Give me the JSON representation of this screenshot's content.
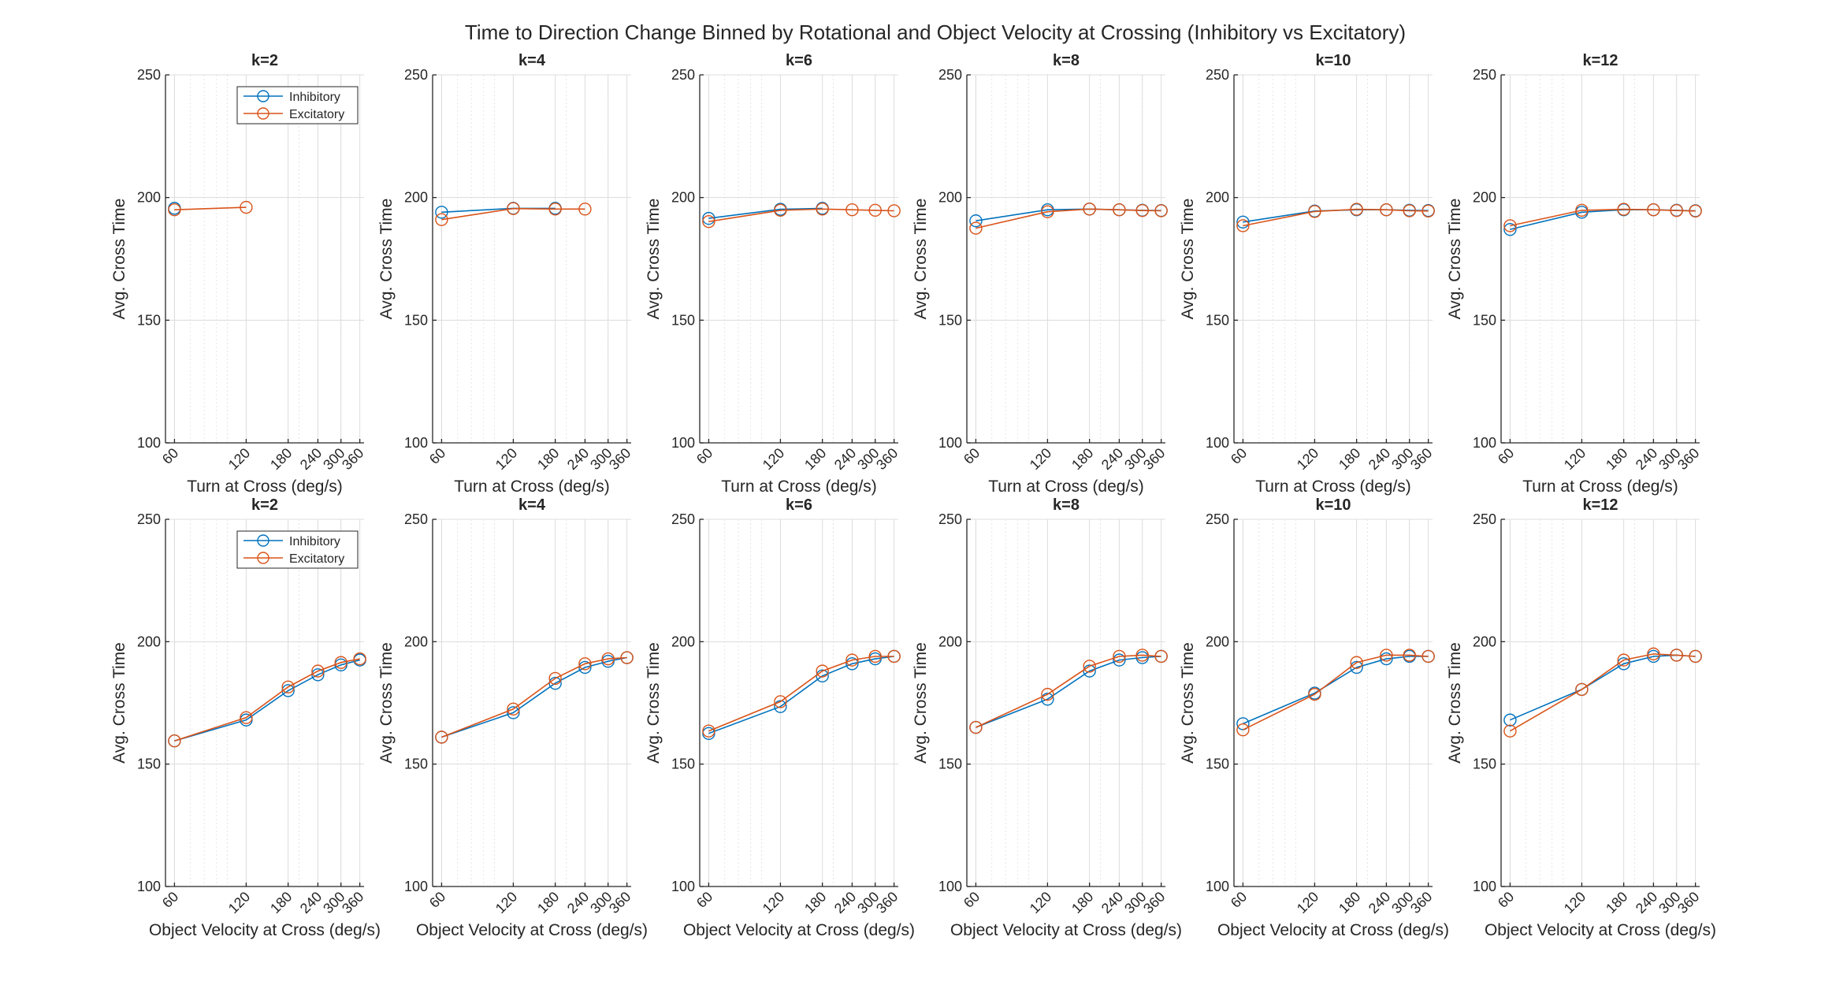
{
  "figure": {
    "title": "Time to Direction Change Binned by Rotational and Object Velocity at Crossing (Inhibitory vs Excitatory)"
  },
  "colors": {
    "inhibitory": "#0072BD",
    "excitatory": "#D95319",
    "axis": "#262626",
    "grid": "#dcdcdc"
  },
  "legend": {
    "entries": [
      "Inhibitory",
      "Excitatory"
    ],
    "placement": "top-right"
  },
  "chart_data": [
    {
      "type": "line",
      "row": 0,
      "title": "k=2",
      "xlabel": "Turn at Cross (deg/s)",
      "ylabel": "Avg. Cross Time",
      "xscale": "log",
      "xlim": [
        55,
        375
      ],
      "ylim": [
        100,
        250
      ],
      "xticks": [
        60,
        120,
        180,
        240,
        300,
        360
      ],
      "yticks": [
        100,
        150,
        200,
        250
      ],
      "grid": true,
      "legend": true,
      "series": [
        {
          "name": "Inhibitory",
          "x": [
            60
          ],
          "y": [
            195.6
          ]
        },
        {
          "name": "Excitatory",
          "x": [
            60,
            120
          ],
          "y": [
            195,
            196
          ]
        }
      ]
    },
    {
      "type": "line",
      "row": 0,
      "title": "k=4",
      "xlabel": "Turn at Cross (deg/s)",
      "ylabel": "Avg. Cross Time",
      "xscale": "log",
      "xlim": [
        55,
        375
      ],
      "ylim": [
        100,
        250
      ],
      "xticks": [
        60,
        120,
        180,
        240,
        300,
        360
      ],
      "yticks": [
        100,
        150,
        200,
        250
      ],
      "grid": true,
      "legend": false,
      "series": [
        {
          "name": "Inhibitory",
          "x": [
            60,
            120,
            180
          ],
          "y": [
            194,
            195.6,
            195.6
          ]
        },
        {
          "name": "Excitatory",
          "x": [
            60,
            120,
            180,
            240
          ],
          "y": [
            191,
            195.5,
            195.3,
            195.3
          ]
        }
      ]
    },
    {
      "type": "line",
      "row": 0,
      "title": "k=6",
      "xlabel": "Turn at Cross (deg/s)",
      "ylabel": "Avg. Cross Time",
      "xscale": "log",
      "xlim": [
        55,
        375
      ],
      "ylim": [
        100,
        250
      ],
      "xticks": [
        60,
        120,
        180,
        240,
        300,
        360
      ],
      "yticks": [
        100,
        150,
        200,
        250
      ],
      "grid": true,
      "legend": false,
      "series": [
        {
          "name": "Inhibitory",
          "x": [
            60,
            120,
            180
          ],
          "y": [
            191.5,
            195.2,
            195.6
          ]
        },
        {
          "name": "Excitatory",
          "x": [
            60,
            120,
            180,
            240,
            300,
            360
          ],
          "y": [
            190.2,
            194.8,
            195.3,
            195,
            194.8,
            194.6
          ]
        }
      ]
    },
    {
      "type": "line",
      "row": 0,
      "title": "k=8",
      "xlabel": "Turn at Cross (deg/s)",
      "ylabel": "Avg. Cross Time",
      "xscale": "log",
      "xlim": [
        55,
        375
      ],
      "ylim": [
        100,
        250
      ],
      "xticks": [
        60,
        120,
        180,
        240,
        300,
        360
      ],
      "yticks": [
        100,
        150,
        200,
        250
      ],
      "grid": true,
      "legend": false,
      "series": [
        {
          "name": "Inhibitory",
          "x": [
            60,
            120,
            180,
            240,
            300,
            360
          ],
          "y": [
            190.5,
            195,
            195.3,
            195,
            194.8,
            194.7
          ]
        },
        {
          "name": "Excitatory",
          "x": [
            60,
            120,
            180,
            240,
            300,
            360
          ],
          "y": [
            187.5,
            194.2,
            195.3,
            195,
            194.7,
            194.6
          ]
        }
      ]
    },
    {
      "type": "line",
      "row": 0,
      "title": "k=10",
      "xlabel": "Turn at Cross (deg/s)",
      "ylabel": "Avg. Cross Time",
      "xscale": "log",
      "xlim": [
        55,
        375
      ],
      "ylim": [
        100,
        250
      ],
      "xticks": [
        60,
        120,
        180,
        240,
        300,
        360
      ],
      "yticks": [
        100,
        150,
        200,
        250
      ],
      "grid": true,
      "legend": false,
      "series": [
        {
          "name": "Inhibitory",
          "x": [
            60,
            120,
            180,
            240,
            300,
            360
          ],
          "y": [
            190,
            194.5,
            195,
            195,
            194.8,
            194.7
          ]
        },
        {
          "name": "Excitatory",
          "x": [
            60,
            120,
            180,
            240,
            300,
            360
          ],
          "y": [
            188.5,
            194.3,
            195.2,
            195,
            194.6,
            194.5
          ]
        }
      ]
    },
    {
      "type": "line",
      "row": 0,
      "title": "k=12",
      "xlabel": "Turn at Cross (deg/s)",
      "ylabel": "Avg. Cross Time",
      "xscale": "log",
      "xlim": [
        55,
        375
      ],
      "ylim": [
        100,
        250
      ],
      "xticks": [
        60,
        120,
        180,
        240,
        300,
        360
      ],
      "yticks": [
        100,
        150,
        200,
        250
      ],
      "grid": true,
      "legend": false,
      "series": [
        {
          "name": "Inhibitory",
          "x": [
            60,
            120,
            180,
            240,
            300,
            360
          ],
          "y": [
            187,
            194,
            195,
            195,
            194.8,
            194.6
          ]
        },
        {
          "name": "Excitatory",
          "x": [
            60,
            120,
            180,
            240,
            300,
            360
          ],
          "y": [
            188.5,
            194.8,
            195.2,
            195,
            194.7,
            194.5
          ]
        }
      ]
    },
    {
      "type": "line",
      "row": 1,
      "title": "k=2",
      "xlabel": "Object Velocity at Cross (deg/s)",
      "ylabel": "Avg. Cross Time",
      "xscale": "log",
      "xlim": [
        55,
        375
      ],
      "ylim": [
        100,
        250
      ],
      "xticks": [
        60,
        120,
        180,
        240,
        300,
        360
      ],
      "yticks": [
        100,
        150,
        200,
        250
      ],
      "grid": true,
      "legend": true,
      "series": [
        {
          "name": "Inhibitory",
          "x": [
            60,
            120,
            180,
            240,
            300,
            360
          ],
          "y": [
            159.5,
            168,
            180,
            186.5,
            190.5,
            192.5
          ]
        },
        {
          "name": "Excitatory",
          "x": [
            60,
            120,
            180,
            240,
            300,
            360
          ],
          "y": [
            159.5,
            169,
            181.5,
            188,
            191.5,
            193
          ]
        }
      ]
    },
    {
      "type": "line",
      "row": 1,
      "title": "k=4",
      "xlabel": "Object Velocity at Cross (deg/s)",
      "ylabel": "Avg. Cross Time",
      "xscale": "log",
      "xlim": [
        55,
        375
      ],
      "ylim": [
        100,
        250
      ],
      "xticks": [
        60,
        120,
        180,
        240,
        300,
        360
      ],
      "yticks": [
        100,
        150,
        200,
        250
      ],
      "grid": true,
      "legend": false,
      "series": [
        {
          "name": "Inhibitory",
          "x": [
            60,
            120,
            180,
            240,
            300,
            360
          ],
          "y": [
            161,
            171,
            183,
            189.5,
            192,
            193.5
          ]
        },
        {
          "name": "Excitatory",
          "x": [
            60,
            120,
            180,
            240,
            300,
            360
          ],
          "y": [
            161,
            172.5,
            185,
            191,
            193,
            193.5
          ]
        }
      ]
    },
    {
      "type": "line",
      "row": 1,
      "title": "k=6",
      "xlabel": "Object Velocity at Cross (deg/s)",
      "ylabel": "Avg. Cross Time",
      "xscale": "log",
      "xlim": [
        55,
        375
      ],
      "ylim": [
        100,
        250
      ],
      "xticks": [
        60,
        120,
        180,
        240,
        300,
        360
      ],
      "yticks": [
        100,
        150,
        200,
        250
      ],
      "grid": true,
      "legend": false,
      "series": [
        {
          "name": "Inhibitory",
          "x": [
            60,
            120,
            180,
            240,
            300,
            360
          ],
          "y": [
            162.5,
            173.5,
            186,
            191,
            193,
            194
          ]
        },
        {
          "name": "Excitatory",
          "x": [
            60,
            120,
            180,
            240,
            300,
            360
          ],
          "y": [
            163.5,
            175.5,
            188,
            192.5,
            194,
            194
          ]
        }
      ]
    },
    {
      "type": "line",
      "row": 1,
      "title": "k=8",
      "xlabel": "Object Velocity at Cross (deg/s)",
      "ylabel": "Avg. Cross Time",
      "xscale": "log",
      "xlim": [
        55,
        375
      ],
      "ylim": [
        100,
        250
      ],
      "xticks": [
        60,
        120,
        180,
        240,
        300,
        360
      ],
      "yticks": [
        100,
        150,
        200,
        250
      ],
      "grid": true,
      "legend": false,
      "series": [
        {
          "name": "Inhibitory",
          "x": [
            60,
            120,
            180,
            240,
            300,
            360
          ],
          "y": [
            165,
            176.5,
            188,
            192.5,
            193.5,
            194
          ]
        },
        {
          "name": "Excitatory",
          "x": [
            60,
            120,
            180,
            240,
            300,
            360
          ],
          "y": [
            165,
            178.5,
            190,
            194,
            194.5,
            194
          ]
        }
      ]
    },
    {
      "type": "line",
      "row": 1,
      "title": "k=10",
      "xlabel": "Object Velocity at Cross (deg/s)",
      "ylabel": "Avg. Cross Time",
      "xscale": "log",
      "xlim": [
        55,
        375
      ],
      "ylim": [
        100,
        250
      ],
      "xticks": [
        60,
        120,
        180,
        240,
        300,
        360
      ],
      "yticks": [
        100,
        150,
        200,
        250
      ],
      "grid": true,
      "legend": false,
      "series": [
        {
          "name": "Inhibitory",
          "x": [
            60,
            120,
            180,
            240,
            300,
            360
          ],
          "y": [
            166.5,
            179,
            189.5,
            193,
            194,
            194
          ]
        },
        {
          "name": "Excitatory",
          "x": [
            60,
            120,
            180,
            240,
            300,
            360
          ],
          "y": [
            164,
            178.5,
            191.5,
            194.5,
            194.5,
            194
          ]
        }
      ]
    },
    {
      "type": "line",
      "row": 1,
      "title": "k=12",
      "xlabel": "Object Velocity at Cross (deg/s)",
      "ylabel": "Avg. Cross Time",
      "xscale": "log",
      "xlim": [
        55,
        375
      ],
      "ylim": [
        100,
        250
      ],
      "xticks": [
        60,
        120,
        180,
        240,
        300,
        360
      ],
      "yticks": [
        100,
        150,
        200,
        250
      ],
      "grid": true,
      "legend": false,
      "series": [
        {
          "name": "Inhibitory",
          "x": [
            60,
            120,
            180,
            240,
            300,
            360
          ],
          "y": [
            168,
            180.5,
            191,
            194,
            194.5,
            194
          ]
        },
        {
          "name": "Excitatory",
          "x": [
            60,
            120,
            180,
            240,
            300,
            360
          ],
          "y": [
            163.5,
            180.5,
            192.5,
            195,
            194.5,
            194
          ]
        }
      ]
    }
  ]
}
